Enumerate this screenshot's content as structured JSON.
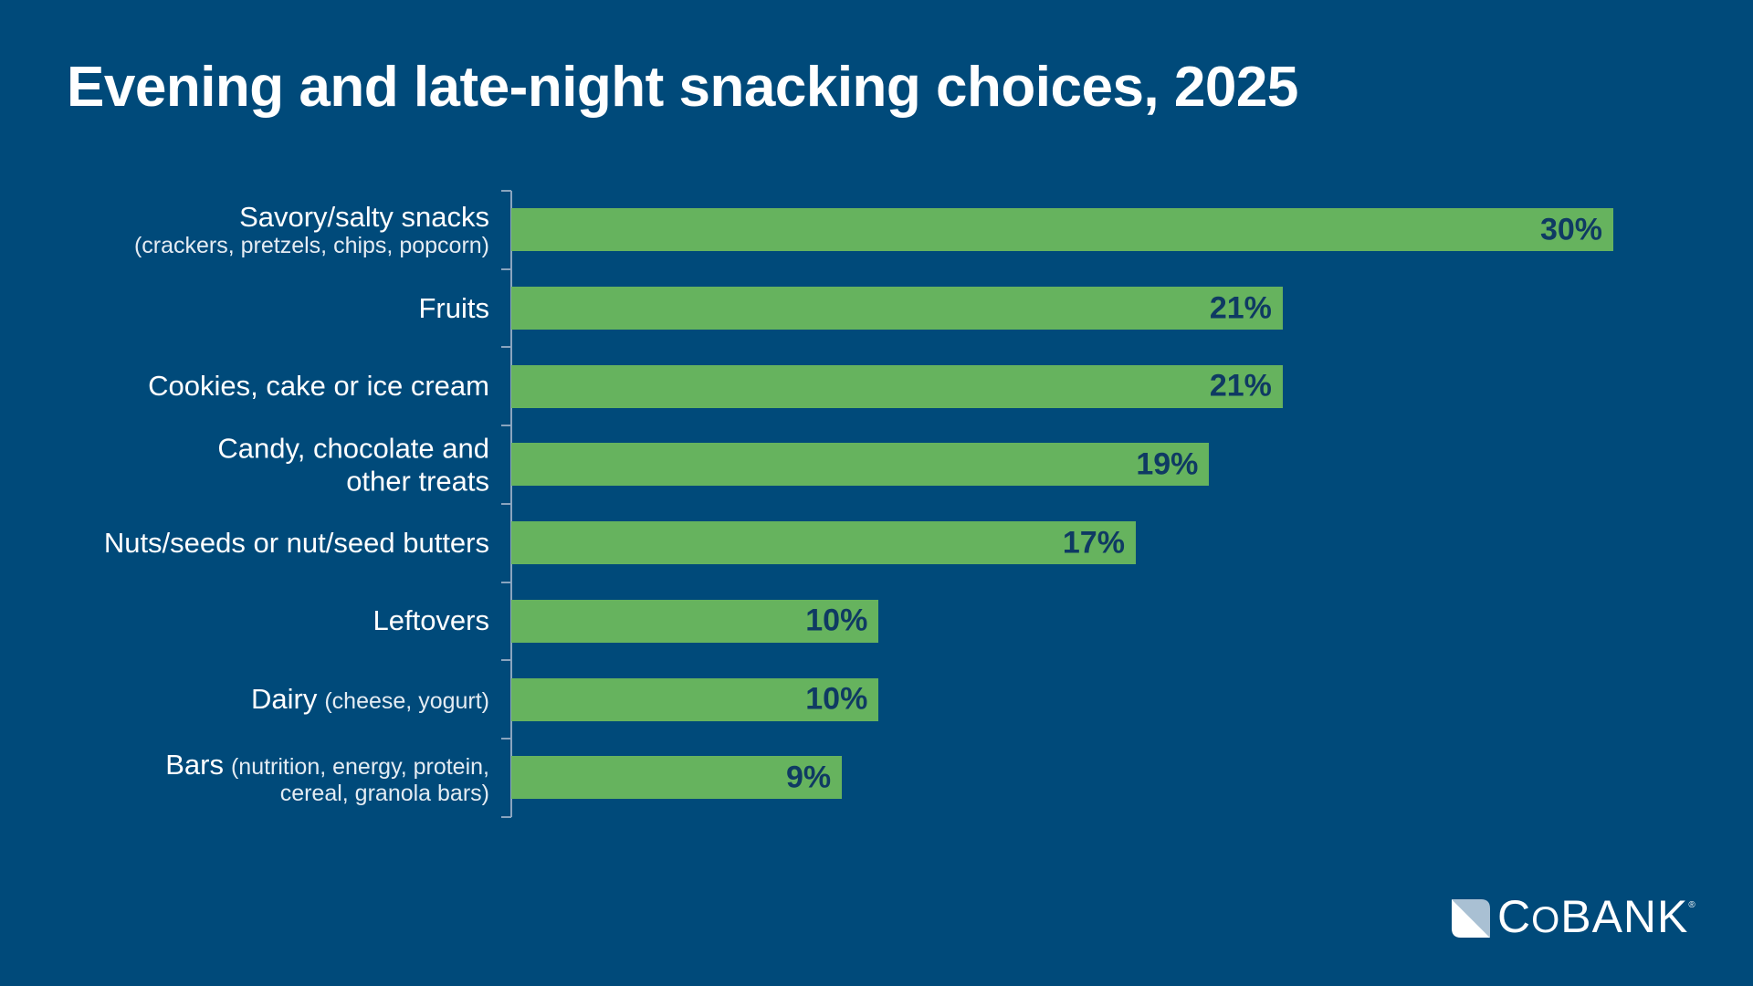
{
  "chart_data": {
    "type": "bar",
    "orientation": "horizontal",
    "title": "Evening and late-night snacking choices, 2025",
    "categories": [
      {
        "main": "Savory/salty snacks",
        "sub": "(crackers, pretzels, chips, popcorn)"
      },
      {
        "main": "Fruits",
        "sub": ""
      },
      {
        "main": "Cookies, cake or ice cream",
        "sub": ""
      },
      {
        "main": "Candy, chocolate and other treats",
        "sub": ""
      },
      {
        "main": "Nuts/seeds or nut/seed butters",
        "sub": ""
      },
      {
        "main": "Leftovers",
        "sub": ""
      },
      {
        "main": "Dairy",
        "sub": "(cheese, yogurt)"
      },
      {
        "main": "Bars",
        "sub": "(nutrition, energy, protein, cereal, granola bars)"
      }
    ],
    "values": [
      30,
      21,
      21,
      19,
      17,
      10,
      10,
      9
    ],
    "value_labels": [
      "30%",
      "21%",
      "21%",
      "19%",
      "17%",
      "10%",
      "10%",
      "9%"
    ],
    "xlim": [
      0,
      30
    ],
    "unit": "%",
    "grid": false,
    "colors": {
      "bar": "#66b35e",
      "value_label": "#0f3a63",
      "background": "#004a7a"
    }
  },
  "logo": {
    "text": "COBANK",
    "registered": "®"
  }
}
